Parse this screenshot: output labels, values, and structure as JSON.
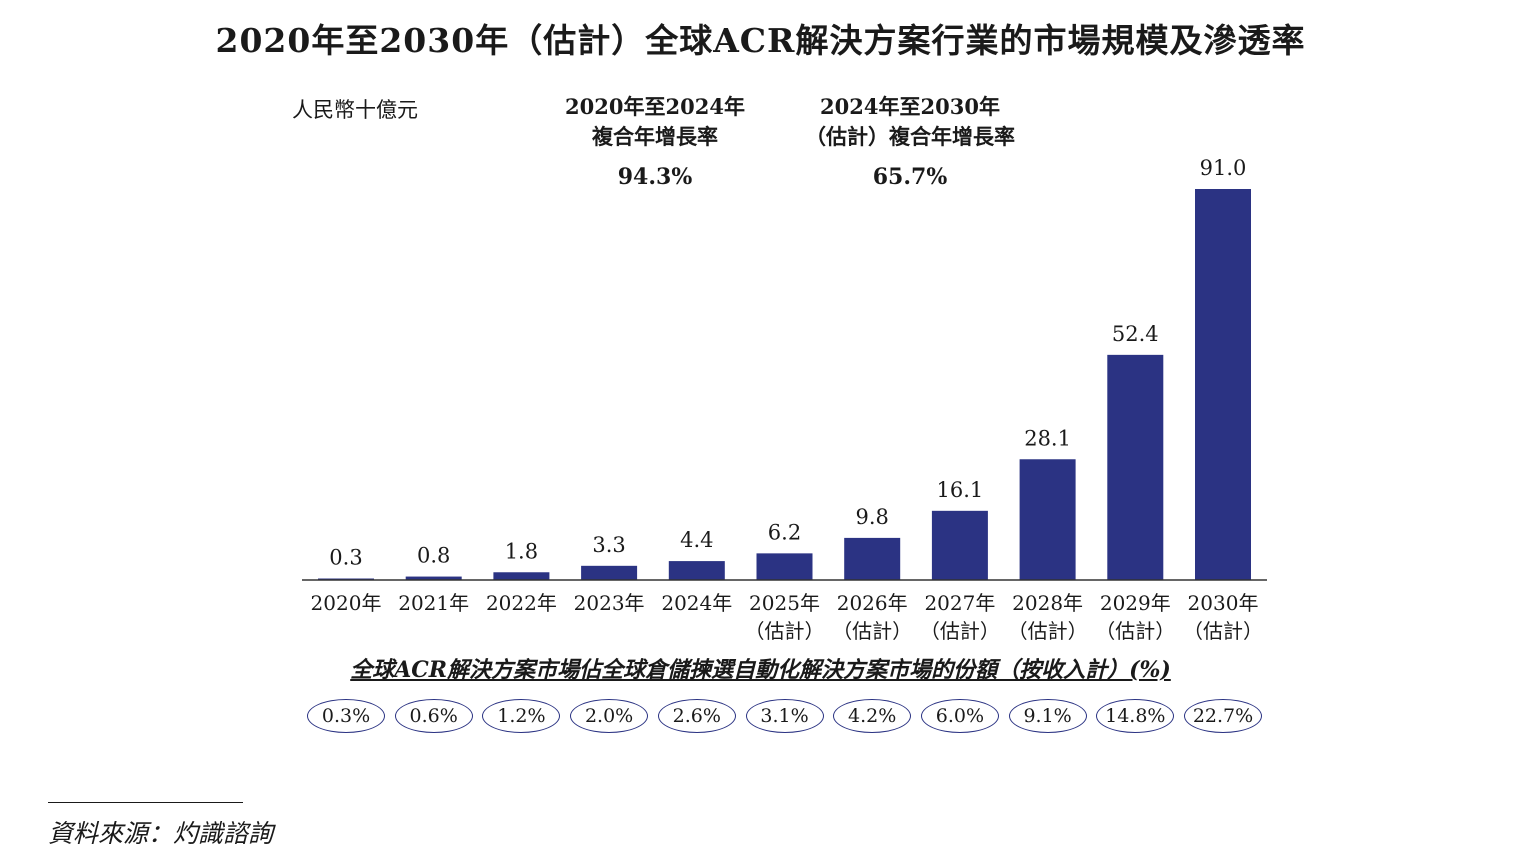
{
  "title": "2020年至2030年（估計）全球ACR解決方案行業的市場規模及滲透率",
  "unit_label": "人民幣十億元",
  "cagr": [
    {
      "period_line1": "2020年至2024年",
      "period_line2": "複合年增長率",
      "value": "94.3%"
    },
    {
      "period_line1": "2024年至2030年",
      "period_line2": "（估計）複合年增長率",
      "value": "65.7%"
    }
  ],
  "chart_data": {
    "type": "bar",
    "title": "2020年至2030年（估計）全球ACR解決方案行業的市場規模及滲透率",
    "ylabel": "人民幣十億元",
    "categories": [
      "2020年",
      "2021年",
      "2022年",
      "2023年",
      "2024年",
      "2025年\n（估計）",
      "2026年\n（估計）",
      "2027年\n（估計）",
      "2028年\n（估計）",
      "2029年\n（估計）",
      "2030年\n（估計）"
    ],
    "category_line1": [
      "2020年",
      "2021年",
      "2022年",
      "2023年",
      "2024年",
      "2025年",
      "2026年",
      "2027年",
      "2028年",
      "2029年",
      "2030年"
    ],
    "category_line2": [
      "",
      "",
      "",
      "",
      "",
      "（估計）",
      "（估計）",
      "（估計）",
      "（估計）",
      "（估計）",
      "（估計）"
    ],
    "values": [
      0.3,
      0.8,
      1.8,
      3.3,
      4.4,
      6.2,
      9.8,
      16.1,
      28.1,
      52.4,
      91.0
    ],
    "value_labels": [
      "0.3",
      "0.8",
      "1.8",
      "3.3",
      "4.4",
      "6.2",
      "9.8",
      "16.1",
      "28.1",
      "52.4",
      "91.0"
    ],
    "ylim": [
      0,
      91.0
    ],
    "bar_color": "#2b3383",
    "grid": false
  },
  "share": {
    "title": "全球ACR解決方案市場佔全球倉儲揀選自動化解決方案市場的份額（按收入計）(%)",
    "values": [
      "0.3%",
      "0.6%",
      "1.2%",
      "2.0%",
      "2.6%",
      "3.1%",
      "4.2%",
      "6.0%",
      "9.1%",
      "14.8%",
      "22.7%"
    ]
  },
  "source": "資料來源：灼識諮詢",
  "colors": {
    "bar": "#2b3383",
    "text": "#1a1a1a",
    "badge_border": "#2b3383"
  }
}
